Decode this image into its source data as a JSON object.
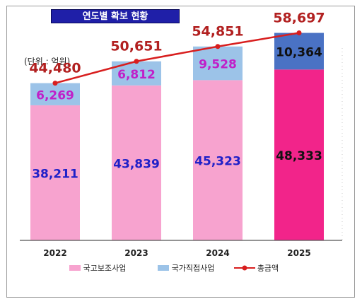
{
  "title": "연도별 확보 현황",
  "unit_label": "(단위 : 억원)",
  "chart_data": {
    "type": "bar",
    "categories": [
      "2022",
      "2023",
      "2024",
      "2025"
    ],
    "series": [
      {
        "name": "국고보조사업",
        "values": [
          38211,
          43839,
          45323,
          48333
        ],
        "colors": [
          "#f7a3cf",
          "#f7a3cf",
          "#f7a3cf",
          "#f2248a"
        ]
      },
      {
        "name": "국가직접사업",
        "values": [
          6269,
          6812,
          9528,
          10364
        ],
        "colors": [
          "#9cc3e8",
          "#9cc3e8",
          "#9cc3e8",
          "#4a72c4"
        ]
      },
      {
        "name": "총금액",
        "type": "line",
        "values": [
          44480,
          50651,
          54851,
          58697
        ],
        "color": "#d81e1e"
      }
    ],
    "labels": {
      "bottom": [
        "38,211",
        "43,839",
        "45,323",
        "48,333"
      ],
      "top": [
        "6,269",
        "6,812",
        "9,528",
        "10,364"
      ],
      "total": [
        "44,480",
        "50,651",
        "54,851",
        "58,697"
      ]
    },
    "label_colors": {
      "bottom": [
        "#2020c8",
        "#2020c8",
        "#2020c8",
        "#111111"
      ],
      "top": [
        "#c020c8",
        "#c020c8",
        "#c020c8",
        "#111111"
      ],
      "total": "#b22020"
    },
    "ylim": [
      0,
      60000
    ],
    "legend": [
      "국고보조사업",
      "국가직접사업",
      "총금액"
    ],
    "legend_position": "bottom",
    "grid": false
  }
}
